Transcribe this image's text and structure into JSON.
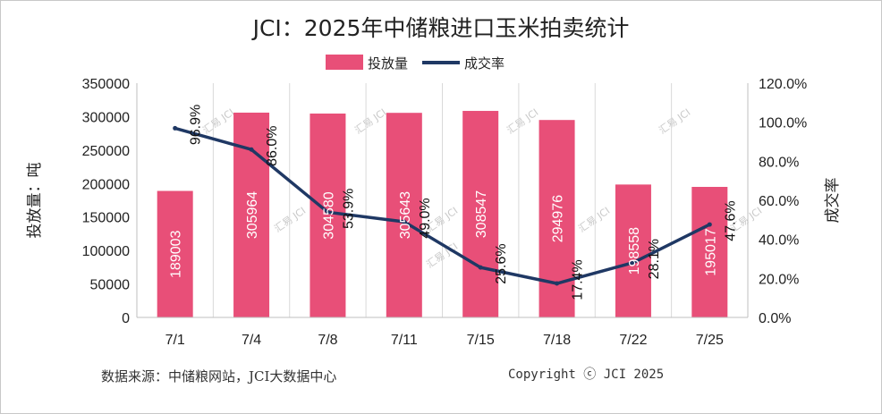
{
  "title": "JCI：2025年中储粮进口玉米拍卖统计",
  "source_note": "数据来源：中储粮网站，JCI大数据中心",
  "copyright": "Copyright ⓒ JCI 2025",
  "watermark": "汇易 JCI",
  "colors": {
    "bar": "#e84f78",
    "line": "#1f3864",
    "grid": "#d9d9d9"
  },
  "chart_data": {
    "type": "bar",
    "title": "JCI：2025年中储粮进口玉米拍卖统计",
    "categories": [
      "7/1",
      "7/4",
      "7/8",
      "7/11",
      "7/15",
      "7/18",
      "7/22",
      "7/25"
    ],
    "series": [
      {
        "name": "投放量",
        "type": "bar",
        "axis": "left",
        "values": [
          189003,
          305964,
          304580,
          305643,
          308547,
          294976,
          198558,
          195017
        ],
        "labels": [
          "189003",
          "305964",
          "304580",
          "305643",
          "308547",
          "294976",
          "198558",
          "195017"
        ]
      },
      {
        "name": "成交率",
        "type": "line",
        "axis": "right",
        "values": [
          96.9,
          86.0,
          53.9,
          49.0,
          25.6,
          17.4,
          28.1,
          47.6
        ],
        "labels": [
          "96.9%",
          "86.0%",
          "53.9%",
          "49.0%",
          "25.6%",
          "17.4%",
          "28.1%",
          "47.6%"
        ]
      }
    ],
    "ylabel": "投放量：吨",
    "y2label": "成交率",
    "ylim": [
      0,
      350000
    ],
    "y_ticks": [
      "0",
      "50000",
      "100000",
      "150000",
      "200000",
      "250000",
      "300000",
      "350000"
    ],
    "y2lim": [
      0,
      120
    ],
    "y2_ticks": [
      "0.0%",
      "20.0%",
      "40.0%",
      "60.0%",
      "80.0%",
      "100.0%",
      "120.0%"
    ],
    "grid": "vertical",
    "legend_position": "top-center"
  }
}
